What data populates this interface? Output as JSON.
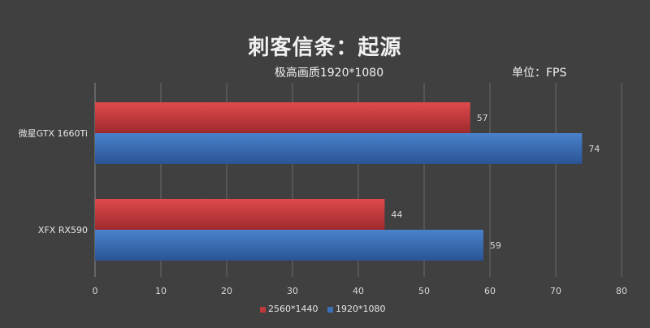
{
  "chart_data": {
    "type": "bar",
    "orientation": "horizontal",
    "title": "刺客信条：起源",
    "subtitle": "极高画质1920*1080",
    "unit_label": "单位：FPS",
    "categories": [
      "微星GTX 1660Ti",
      "XFX RX590"
    ],
    "series": [
      {
        "name": "2560*1440",
        "values": [
          57,
          44
        ],
        "color": "#c0393c"
      },
      {
        "name": "1920*1080",
        "values": [
          74,
          59
        ],
        "color": "#3b6fb6"
      }
    ],
    "xlim": [
      0,
      80
    ],
    "xticks": [
      0,
      10,
      20,
      30,
      40,
      50,
      60,
      70,
      80
    ],
    "grid": true,
    "legend_position": "bottom"
  }
}
